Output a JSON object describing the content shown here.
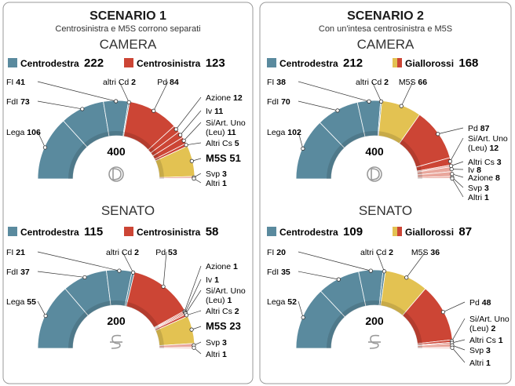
{
  "panels": [
    {
      "title": "SCENARIO 1",
      "subtitle": "Centrosinistra e M5S corrono separati",
      "charts": [
        {
          "chamber": "CAMERA",
          "total": "400",
          "legend": [
            {
              "name": "Centrodestra",
              "value": "222",
              "color": "#5a8a9e"
            },
            {
              "name": "Centrosinistra",
              "value": "123",
              "color": "#cc4535"
            }
          ]
        },
        {
          "chamber": "SENATO",
          "total": "200",
          "legend": [
            {
              "name": "Centrodestra",
              "value": "115",
              "color": "#5a8a9e"
            },
            {
              "name": "Centrosinistra",
              "value": "58",
              "color": "#cc4535"
            }
          ]
        }
      ]
    },
    {
      "title": "SCENARIO 2",
      "subtitle": "Con un'intesa centrosinistra e M5S",
      "charts": [
        {
          "chamber": "CAMERA",
          "total": "400",
          "legend": [
            {
              "name": "Centrodestra",
              "value": "212",
              "color": "#5a8a9e"
            },
            {
              "name": "Giallorossi",
              "value": "168",
              "color": "split"
            }
          ]
        },
        {
          "chamber": "SENATO",
          "total": "200",
          "legend": [
            {
              "name": "Centrodestra",
              "value": "109",
              "color": "#5a8a9e"
            },
            {
              "name": "Giallorossi",
              "value": "87",
              "color": "split"
            }
          ]
        }
      ]
    }
  ],
  "colors": {
    "centrodestra": "#5a8a9e",
    "centrosinistra": "#cc4535",
    "m5s": "#e3c252",
    "altri": "#e9a79c",
    "frame": "#9a9a9a"
  },
  "chart_data": [
    {
      "type": "pie",
      "title": "CAMERA",
      "scenario": "SCENARIO 1",
      "total": 400,
      "slices": [
        {
          "label": "Lega",
          "value": 106,
          "color": "#5a8a9e"
        },
        {
          "label": "FdI",
          "value": 73,
          "color": "#5a8a9e"
        },
        {
          "label": "FI",
          "value": 41,
          "color": "#5a8a9e"
        },
        {
          "label": "altri Cd",
          "value": 2,
          "color": "#5a8a9e"
        },
        {
          "label": "Pd",
          "value": 84,
          "color": "#cc4535"
        },
        {
          "label": "Azione",
          "value": 12,
          "color": "#cc4535"
        },
        {
          "label": "Iv",
          "value": 11,
          "color": "#cc4535"
        },
        {
          "label": "Si/Art. Uno (Leu)",
          "value": 11,
          "color": "#cc4535"
        },
        {
          "label": "Altri Cs",
          "value": 5,
          "color": "#cc4535"
        },
        {
          "label": "M5S",
          "value": 51,
          "color": "#e3c252"
        },
        {
          "label": "Svp",
          "value": 3,
          "color": "#e9a79c"
        },
        {
          "label": "Altri",
          "value": 1,
          "color": "#e9a79c"
        }
      ]
    },
    {
      "type": "pie",
      "title": "SENATO",
      "scenario": "SCENARIO 1",
      "total": 200,
      "slices": [
        {
          "label": "Lega",
          "value": 55,
          "color": "#5a8a9e"
        },
        {
          "label": "FdI",
          "value": 37,
          "color": "#5a8a9e"
        },
        {
          "label": "FI",
          "value": 21,
          "color": "#5a8a9e"
        },
        {
          "label": "altri Cd",
          "value": 2,
          "color": "#5a8a9e"
        },
        {
          "label": "Pd",
          "value": 53,
          "color": "#cc4535"
        },
        {
          "label": "Azione",
          "value": 1,
          "color": "#cc4535"
        },
        {
          "label": "Iv",
          "value": 1,
          "color": "#cc4535"
        },
        {
          "label": "Si/Art. Uno (Leu)",
          "value": 1,
          "color": "#cc4535"
        },
        {
          "label": "Altri Cs",
          "value": 2,
          "color": "#cc4535"
        },
        {
          "label": "M5S",
          "value": 23,
          "color": "#e3c252"
        },
        {
          "label": "Svp",
          "value": 3,
          "color": "#e9a79c"
        },
        {
          "label": "Altri",
          "value": 1,
          "color": "#e9a79c"
        }
      ]
    },
    {
      "type": "pie",
      "title": "CAMERA",
      "scenario": "SCENARIO 2",
      "total": 400,
      "slices": [
        {
          "label": "Lega",
          "value": 102,
          "color": "#5a8a9e"
        },
        {
          "label": "FdI",
          "value": 70,
          "color": "#5a8a9e"
        },
        {
          "label": "FI",
          "value": 38,
          "color": "#5a8a9e"
        },
        {
          "label": "altri Cd",
          "value": 2,
          "color": "#5a8a9e"
        },
        {
          "label": "M5S",
          "value": 66,
          "color": "#e3c252"
        },
        {
          "label": "Pd",
          "value": 87,
          "color": "#cc4535"
        },
        {
          "label": "Si/Art. Uno (Leu)",
          "value": 12,
          "color": "#cc4535"
        },
        {
          "label": "Altri Cs",
          "value": 3,
          "color": "#e9a79c"
        },
        {
          "label": "Iv",
          "value": 8,
          "color": "#e9a79c"
        },
        {
          "label": "Azione",
          "value": 8,
          "color": "#e9a79c"
        },
        {
          "label": "Svp",
          "value": 3,
          "color": "#e9a79c"
        },
        {
          "label": "Altri",
          "value": 1,
          "color": "#e9a79c"
        }
      ]
    },
    {
      "type": "pie",
      "title": "SENATO",
      "scenario": "SCENARIO 2",
      "total": 200,
      "slices": [
        {
          "label": "Lega",
          "value": 52,
          "color": "#5a8a9e"
        },
        {
          "label": "FdI",
          "value": 35,
          "color": "#5a8a9e"
        },
        {
          "label": "FI",
          "value": 20,
          "color": "#5a8a9e"
        },
        {
          "label": "altri Cd",
          "value": 2,
          "color": "#5a8a9e"
        },
        {
          "label": "M5S",
          "value": 36,
          "color": "#e3c252"
        },
        {
          "label": "Pd",
          "value": 48,
          "color": "#cc4535"
        },
        {
          "label": "Si/Art. Uno (Leu)",
          "value": 2,
          "color": "#cc4535"
        },
        {
          "label": "Altri Cs",
          "value": 1,
          "color": "#cc4535"
        },
        {
          "label": "Svp",
          "value": 3,
          "color": "#e9a79c"
        },
        {
          "label": "Altri",
          "value": 1,
          "color": "#e9a79c"
        }
      ]
    }
  ]
}
